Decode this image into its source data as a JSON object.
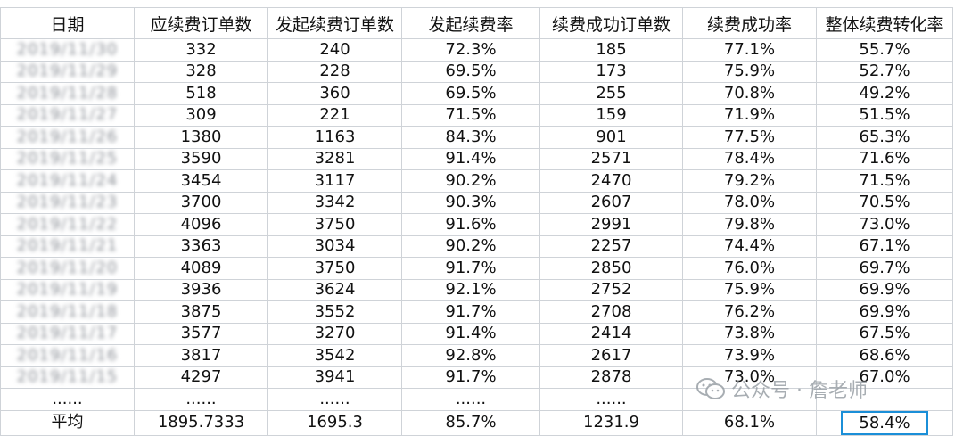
{
  "headers": [
    "日期",
    "应续费订单数",
    "发起续费订单数",
    "发起续费率",
    "续费成功订单数",
    "续费成功率",
    "整体续费转化率"
  ],
  "rows": [
    [
      "2019/11/30",
      "332",
      "240",
      "72.3%",
      "185",
      "77.1%",
      "55.7%"
    ],
    [
      "2019/11/29",
      "328",
      "228",
      "69.5%",
      "173",
      "75.9%",
      "52.7%"
    ],
    [
      "2019/11/28",
      "518",
      "360",
      "69.5%",
      "255",
      "70.8%",
      "49.2%"
    ],
    [
      "2019/11/27",
      "309",
      "221",
      "71.5%",
      "159",
      "71.9%",
      "51.5%"
    ],
    [
      "2019/11/26",
      "1380",
      "1163",
      "84.3%",
      "901",
      "77.5%",
      "65.3%"
    ],
    [
      "2019/11/25",
      "3590",
      "3281",
      "91.4%",
      "2571",
      "78.4%",
      "71.6%"
    ],
    [
      "2019/11/24",
      "3454",
      "3117",
      "90.2%",
      "2470",
      "79.2%",
      "71.5%"
    ],
    [
      "2019/11/23",
      "3700",
      "3342",
      "90.3%",
      "2607",
      "78.0%",
      "70.5%"
    ],
    [
      "2019/11/22",
      "4096",
      "3750",
      "91.6%",
      "2991",
      "79.8%",
      "73.0%"
    ],
    [
      "2019/11/21",
      "3363",
      "3034",
      "90.2%",
      "2257",
      "74.4%",
      "67.1%"
    ],
    [
      "2019/11/20",
      "4089",
      "3750",
      "91.7%",
      "2850",
      "76.0%",
      "69.7%"
    ],
    [
      "2019/11/19",
      "3936",
      "3624",
      "92.1%",
      "2752",
      "75.9%",
      "69.9%"
    ],
    [
      "2019/11/18",
      "3875",
      "3552",
      "91.7%",
      "2708",
      "76.2%",
      "69.9%"
    ],
    [
      "2019/11/17",
      "3577",
      "3270",
      "91.4%",
      "2414",
      "73.8%",
      "67.5%"
    ],
    [
      "2019/11/16",
      "3817",
      "3542",
      "92.8%",
      "2617",
      "73.9%",
      "68.6%"
    ],
    [
      "2019/11/15",
      "4297",
      "3941",
      "91.7%",
      "2878",
      "73.0%",
      "67.0%"
    ]
  ],
  "ellipsis_row": [
    "......",
    "......",
    "......",
    "......",
    "......"
  ],
  "average_row": [
    "平均",
    "1895.7333",
    "1695.3",
    "85.7%",
    "1231.9",
    "68.1%",
    "58.4%"
  ],
  "watermark": "公众号 · 詹老师",
  "highlight_color": "#1b8fd8"
}
